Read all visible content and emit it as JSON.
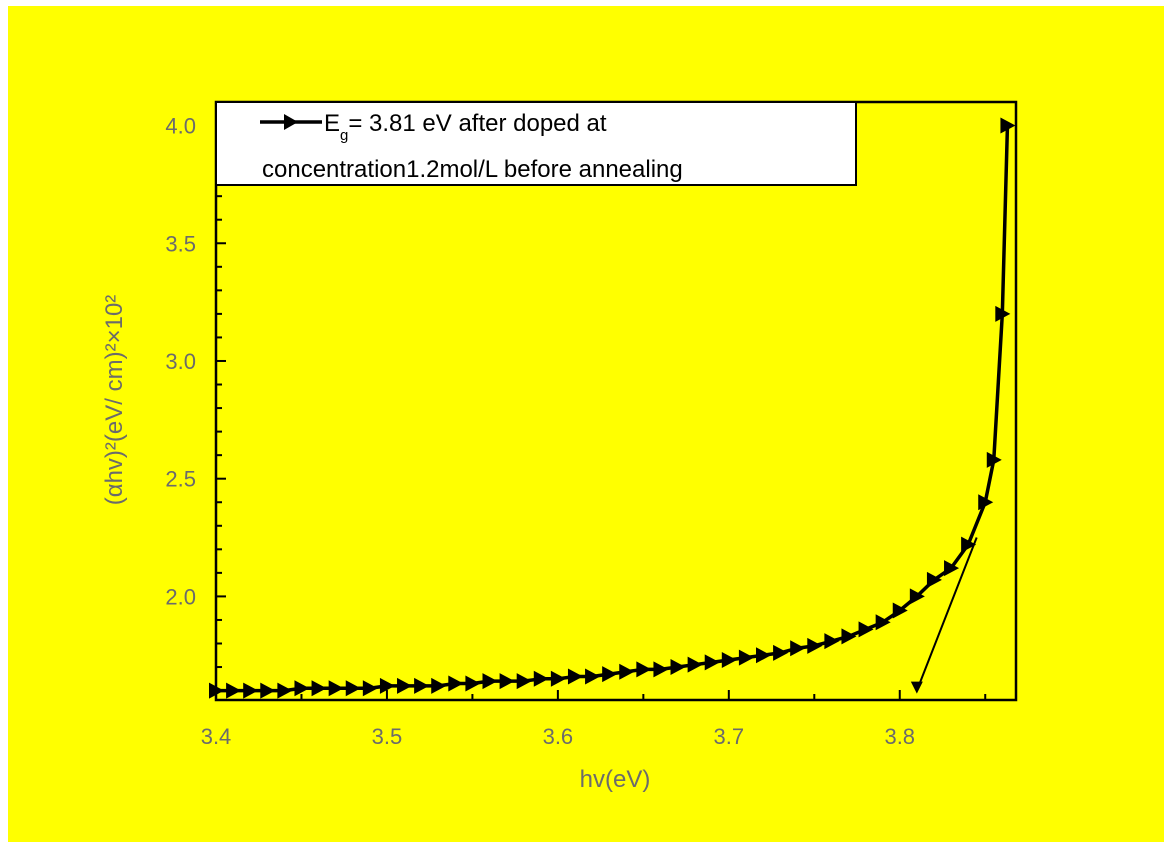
{
  "chart_data": {
    "type": "line",
    "title": "",
    "xlabel": "hv(eV)",
    "ylabel": "(αhv)²(eV/ cm)²×10²",
    "xlim": [
      3.4,
      3.868
    ],
    "ylim": [
      1.56,
      4.1
    ],
    "x_ticks": [
      "3.4",
      "3.5",
      "3.6",
      "3.7",
      "3.8"
    ],
    "y_ticks": [
      "2.0",
      "2.5",
      "3.0",
      "3.5",
      "4.0"
    ],
    "grid": false,
    "legend_position": "top",
    "legend_lines": [
      "= 3.81 eV after doped at",
      "concentration1.2mol/L before annealing"
    ],
    "legend_symbol": "E",
    "legend_subscript": "g",
    "colors": {
      "background": "#ffff00",
      "series": "#000000",
      "axis_text": "#6b6b6b"
    },
    "series": [
      {
        "marker": "triangle-right",
        "x": [
          3.4,
          3.41,
          3.42,
          3.43,
          3.44,
          3.45,
          3.46,
          3.47,
          3.48,
          3.49,
          3.5,
          3.51,
          3.52,
          3.53,
          3.54,
          3.55,
          3.56,
          3.57,
          3.58,
          3.59,
          3.6,
          3.61,
          3.62,
          3.63,
          3.64,
          3.65,
          3.66,
          3.67,
          3.68,
          3.69,
          3.7,
          3.71,
          3.72,
          3.73,
          3.74,
          3.75,
          3.76,
          3.77,
          3.78,
          3.79,
          3.8,
          3.81,
          3.82,
          3.83,
          3.84,
          3.85,
          3.855,
          3.86,
          3.863
        ],
        "y": [
          1.6,
          1.6,
          1.6,
          1.6,
          1.6,
          1.61,
          1.61,
          1.61,
          1.61,
          1.61,
          1.62,
          1.62,
          1.62,
          1.62,
          1.63,
          1.63,
          1.64,
          1.64,
          1.64,
          1.65,
          1.65,
          1.66,
          1.66,
          1.67,
          1.68,
          1.69,
          1.69,
          1.7,
          1.71,
          1.72,
          1.73,
          1.74,
          1.75,
          1.76,
          1.78,
          1.79,
          1.81,
          1.83,
          1.86,
          1.89,
          1.94,
          2.0,
          2.07,
          2.12,
          2.22,
          2.4,
          2.58,
          3.2,
          4.0
        ]
      }
    ],
    "tangent_line": {
      "x": [
        3.81,
        3.845
      ],
      "y": [
        1.6,
        2.25
      ]
    }
  }
}
